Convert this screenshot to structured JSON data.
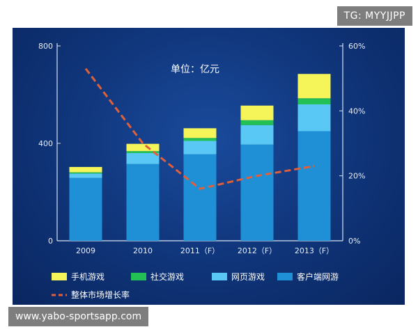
{
  "watermark_top": "TG: MYYJJPP",
  "watermark_bottom": "www.yabo-sportsapp.com",
  "chart_data": {
    "type": "bar",
    "subtype": "stacked-bar-with-line",
    "annotation": "单位：亿元",
    "categories": [
      "2009",
      "2010",
      "2011（F）",
      "2012（F）",
      "2013（F）"
    ],
    "series": [
      {
        "name": "客户端网游",
        "color": "#1f8fd6",
        "values": [
          258,
          315,
          355,
          395,
          450
        ]
      },
      {
        "name": "网页游戏",
        "color": "#5ac8f5",
        "values": [
          18,
          45,
          55,
          80,
          110
        ]
      },
      {
        "name": "社交游戏",
        "color": "#22c055",
        "values": [
          5,
          8,
          12,
          20,
          25
        ]
      },
      {
        "name": "手机游戏",
        "color": "#f5f55a",
        "values": [
          22,
          30,
          40,
          60,
          100
        ]
      }
    ],
    "line_series": {
      "name": "整体市场增长率",
      "color": "#e0603a",
      "values": [
        53,
        30,
        16,
        20,
        23
      ],
      "axis": "right"
    },
    "y_left": {
      "ylim": [
        0,
        800
      ],
      "ticks": [
        "0",
        "400",
        "800"
      ]
    },
    "y_right": {
      "ylim": [
        0,
        60
      ],
      "ticks": [
        "0%",
        "20%",
        "40%",
        "60%"
      ]
    },
    "legend_placement": "bottom",
    "grid": false
  }
}
